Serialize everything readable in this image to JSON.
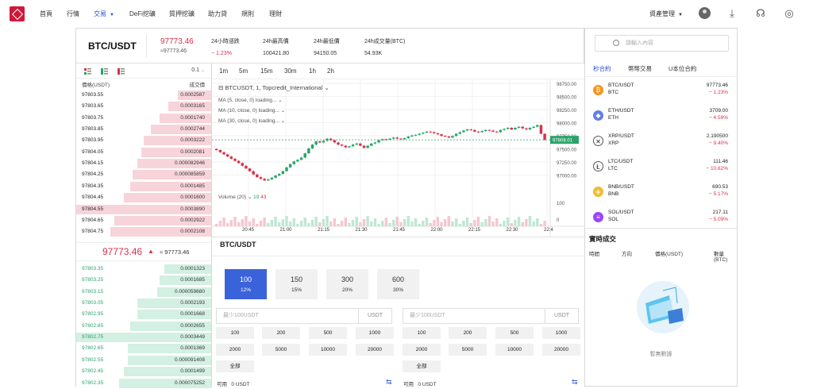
{
  "nav": {
    "items": [
      "首頁",
      "行情",
      "交易",
      "DeFi挖礦",
      "質押挖礦",
      "助力貸",
      "規則",
      "理財"
    ],
    "account": "資產管理",
    "active_index": 2
  },
  "ticker": {
    "pair": "BTC/USDT",
    "price": "97773.46",
    "price_sub": "≈97773.46",
    "stats": [
      {
        "label": "24小時漲跌",
        "value": "− 1.23%",
        "color": "red"
      },
      {
        "label": "24h最高價",
        "value": "100421.80"
      },
      {
        "label": "24h最低價",
        "value": "94150.05"
      },
      {
        "label": "24h成交量(BTC)",
        "value": "54.93K"
      }
    ]
  },
  "orderbook": {
    "precision": "0.1",
    "col_price": "價格(USDT)",
    "col_amount": "成交價",
    "asks": [
      {
        "p": "97803.55",
        "a": "0.0002587",
        "d": 0.25
      },
      {
        "p": "97803.65",
        "a": "0.0003165",
        "d": 0.32
      },
      {
        "p": "97803.75",
        "a": "0.0001740",
        "d": 0.38
      },
      {
        "p": "97803.85",
        "a": "0.0002744",
        "d": 0.45
      },
      {
        "p": "97803.95",
        "a": "0.0003222",
        "d": 0.5
      },
      {
        "p": "97804.05",
        "a": "0.0002081",
        "d": 0.52
      },
      {
        "p": "97804.15",
        "a": "0.000082946",
        "d": 0.55
      },
      {
        "p": "97804.25",
        "a": "0.000085859",
        "d": 0.58
      },
      {
        "p": "97804.35",
        "a": "0.0001485",
        "d": 0.6
      },
      {
        "p": "97804.45",
        "a": "0.0001600",
        "d": 0.65
      },
      {
        "p": "97804.55",
        "a": "0.0003890",
        "d": 1.0
      },
      {
        "p": "97804.65",
        "a": "0.0002922",
        "d": 0.72
      },
      {
        "p": "97804.75",
        "a": "0.0002108",
        "d": 0.75
      }
    ],
    "mid_price": "97773.46",
    "mid_sub": "≈ 97773.46",
    "bids": [
      {
        "p": "97803.35",
        "a": "0.0001323",
        "d": 0.35
      },
      {
        "p": "97803.25",
        "a": "0.0001685",
        "d": 0.38
      },
      {
        "p": "97803.15",
        "a": "0.000059680",
        "d": 0.4
      },
      {
        "p": "97803.05",
        "a": "0.0002193",
        "d": 0.55
      },
      {
        "p": "97802.95",
        "a": "0.0001668",
        "d": 0.55
      },
      {
        "p": "97802.85",
        "a": "0.0002655",
        "d": 0.6
      },
      {
        "p": "97802.75",
        "a": "0.0003449",
        "d": 1.0
      },
      {
        "p": "97802.65",
        "a": "0.0001369",
        "d": 0.62
      },
      {
        "p": "97802.55",
        "a": "0.000091408",
        "d": 0.62
      },
      {
        "p": "97802.45",
        "a": "0.0001499",
        "d": 0.65
      },
      {
        "p": "97802.35",
        "a": "0.000075252",
        "d": 0.68
      }
    ]
  },
  "chart": {
    "timeframes": [
      "1m",
      "5m",
      "15m",
      "30m",
      "1h",
      "2h"
    ],
    "symbol_line": "BTCUSDT, 1, Topcredit_International",
    "ma_lines": [
      "MA (5, close, 0) loading...",
      "MA (10, close, 0) loading...",
      "MA (30, close, 0) loading..."
    ],
    "volume_label": "Volume (20)",
    "volume_v1": "19",
    "volume_v2": "43",
    "current_price": "97808.01",
    "yticks": [
      "98750.00",
      "98500.00",
      "98250.00",
      "98000.00",
      "97750.00",
      "97500.00",
      "97250.00",
      "97000.00"
    ],
    "vticks": [
      "100",
      "0"
    ],
    "xticks": [
      "20:45",
      "21:00",
      "21:15",
      "21:30",
      "21:45",
      "22:00",
      "22:15",
      "22:30",
      "22:4"
    ]
  },
  "chart_data": {
    "type": "candlestick",
    "ylim": [
      96800,
      98850
    ],
    "closes": [
      97620,
      97580,
      97540,
      97500,
      97460,
      97420,
      97380,
      97330,
      97280,
      97230,
      97170,
      97120,
      97090,
      97060,
      97080,
      97110,
      97150,
      97180,
      97230,
      97300,
      97360,
      97410,
      97440,
      97480,
      97560,
      97650,
      97720,
      97780,
      97760,
      97790,
      97830,
      97800,
      97760,
      97720,
      97700,
      97670,
      97690,
      97720,
      97740,
      97700,
      97660,
      97700,
      97740,
      97760,
      97800,
      97820,
      97810,
      97830,
      97850,
      97830,
      97820,
      97840,
      97870,
      97890,
      97900,
      97920,
      97940,
      97960,
      97950,
      97930,
      97910,
      97880,
      97870,
      97850,
      97880,
      97920,
      97950,
      97980,
      98000,
      97990,
      97960,
      97950,
      97970,
      97990,
      97980,
      97960,
      97950,
      97990,
      98010,
      98030,
      98000,
      98030,
      98050,
      98020,
      98000,
      98030,
      98050,
      98080,
      97920,
      97808
    ]
  },
  "form": {
    "title": "BTC/USDT",
    "leverages": [
      {
        "t": "100",
        "s": "12%"
      },
      {
        "t": "150",
        "s": "15%"
      },
      {
        "t": "300",
        "s": "20%"
      },
      {
        "t": "600",
        "s": "30%"
      }
    ],
    "placeholder": "最少100USDT",
    "unit": "USDT",
    "quick": [
      "100",
      "200",
      "500",
      "1000",
      "2000",
      "5000",
      "10000",
      "20000"
    ],
    "all": "全部",
    "avail_label": "可用",
    "avail_value": "0 USDT"
  },
  "right": {
    "search_placeholder": "請輸入內容",
    "tabs": [
      "秒合約",
      "幣幣交易",
      "U本位合約"
    ],
    "coins": [
      {
        "pair": "BTC/USDT",
        "sym": "BTC",
        "price": "97773.46",
        "chg": "− 1.23%",
        "color": "#f7931a",
        "glyph": "₿"
      },
      {
        "pair": "ETH/USDT",
        "sym": "ETH",
        "price": "3709.00",
        "chg": "− 4.59%",
        "color": "#627eea",
        "glyph": "◆"
      },
      {
        "pair": "XRP/USDT",
        "sym": "XRP",
        "price": "2.190500",
        "chg": "− 9.40%",
        "color": "#ffffff",
        "glyph": "✕"
      },
      {
        "pair": "LTC/USDT",
        "sym": "LTC",
        "price": "111.46",
        "chg": "− 10.62%",
        "color": "#ffffff",
        "glyph": "Ł"
      },
      {
        "pair": "BNB/USDT",
        "sym": "BNB",
        "price": "690.53",
        "chg": "− 5.17%",
        "color": "#f3ba2f",
        "glyph": "◈"
      },
      {
        "pair": "SOL/USDT",
        "sym": "SOL",
        "price": "217.11",
        "chg": "− 5.09%",
        "color": "#9945ff",
        "glyph": "≡"
      }
    ],
    "trades_title": "實時成交",
    "trade_cols": [
      "時間",
      "方向",
      "價格(USDT)",
      "數量(BTC)"
    ],
    "empty_text": "暫無數據"
  },
  "colors": {
    "accent": "#3b63d9",
    "down": "#d9304a",
    "up": "#29a36a",
    "ask_bar": "#f7d4da",
    "bid_bar": "#d3f0e2"
  }
}
